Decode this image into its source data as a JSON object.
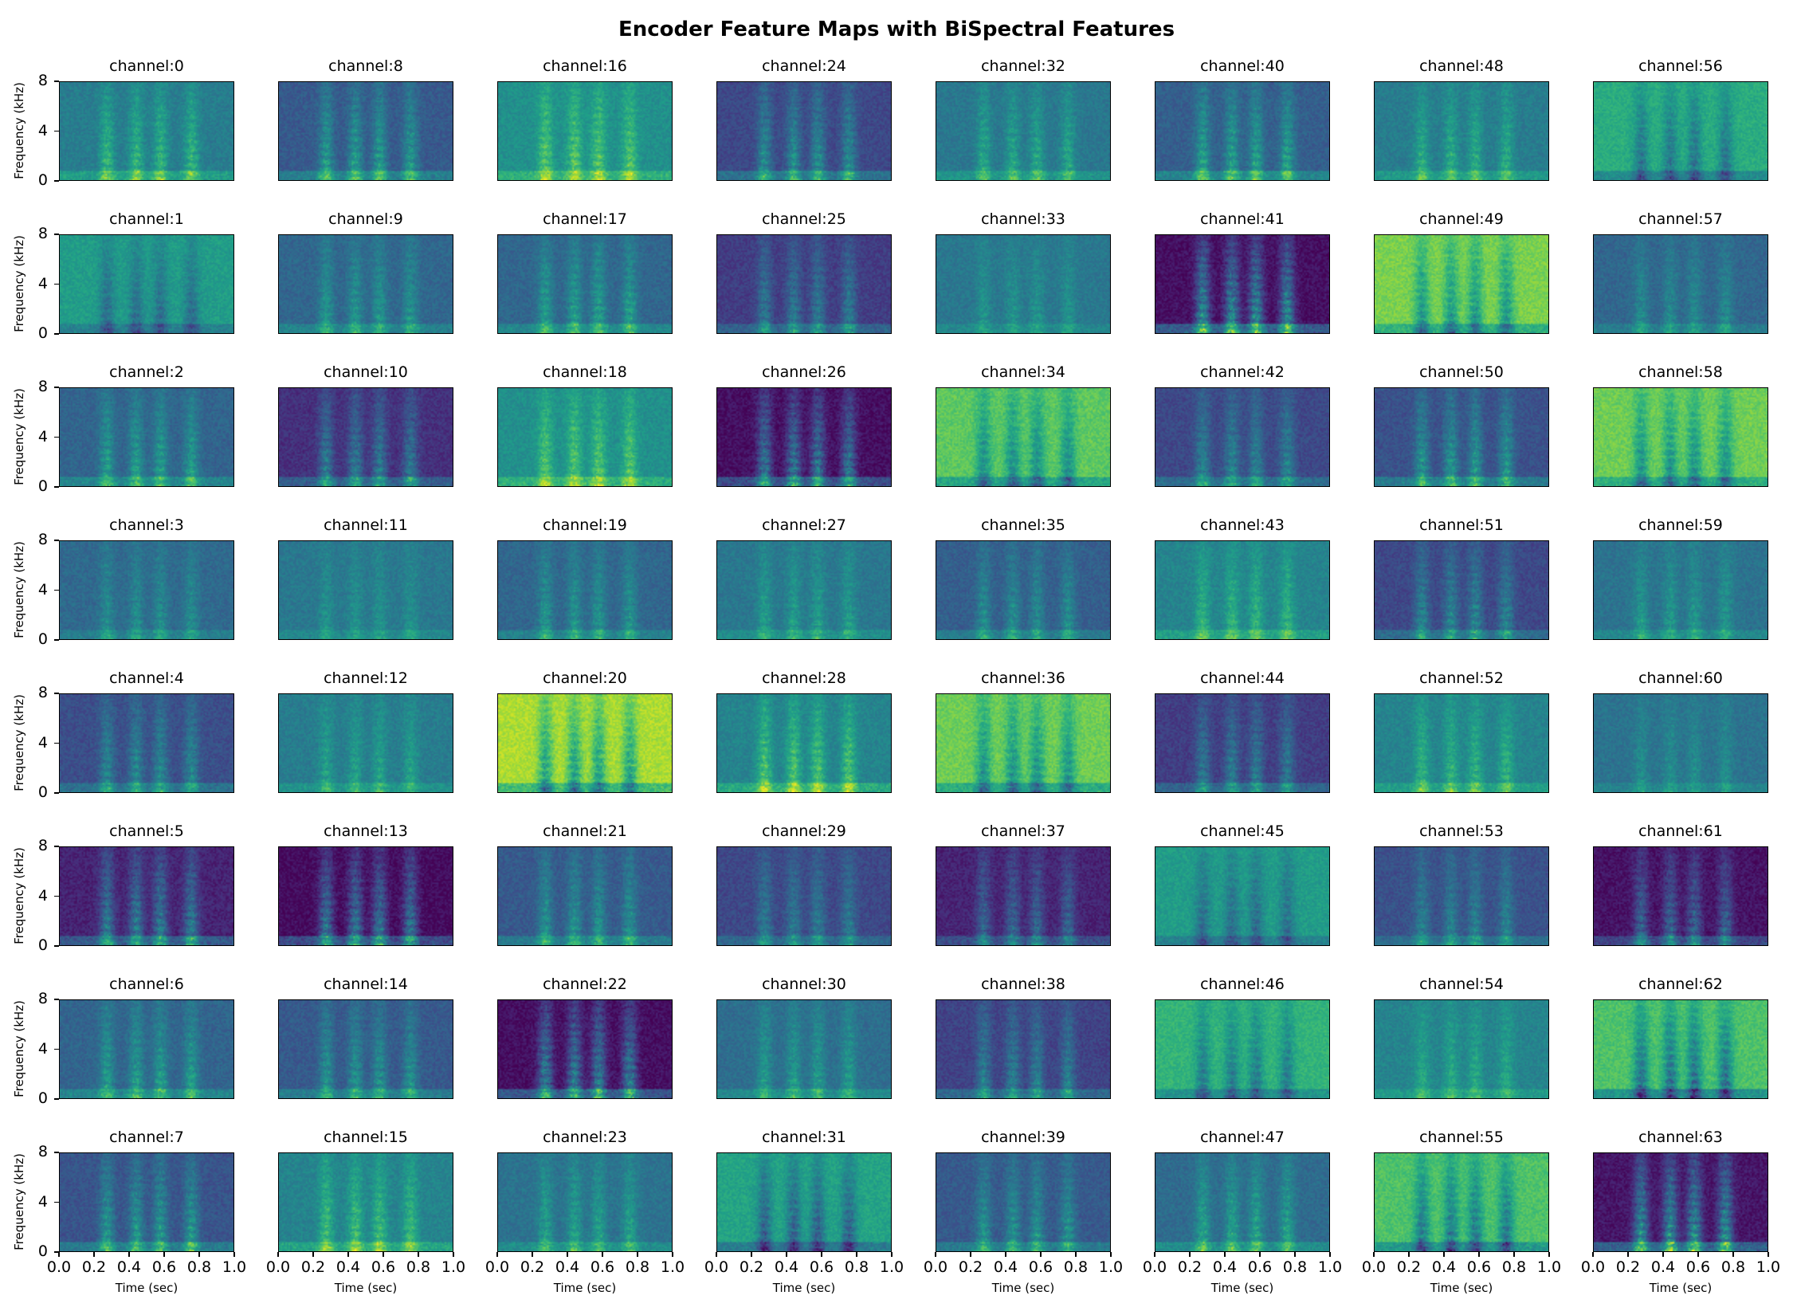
{
  "chart_data": {
    "type": "heatmap",
    "title": "Encoder Feature Maps with BiSpectral Features",
    "xlabel": "Time (sec)",
    "ylabel": "Frequency (kHz)",
    "xlim": [
      0.0,
      1.0
    ],
    "ylim": [
      0,
      8
    ],
    "xticks": [
      "0.0",
      "0.2",
      "0.4",
      "0.6",
      "0.8",
      "1.0"
    ],
    "yticks": [
      "0",
      "4",
      "8"
    ],
    "colormap": "viridis",
    "grid": false,
    "rows": 8,
    "cols": 8,
    "panels": [
      {
        "title": "channel:0",
        "bg": 0.42,
        "contrast": 0.3
      },
      {
        "title": "channel:8",
        "bg": 0.28,
        "contrast": 0.35
      },
      {
        "title": "channel:16",
        "bg": 0.5,
        "contrast": 0.3
      },
      {
        "title": "channel:24",
        "bg": 0.22,
        "contrast": 0.35
      },
      {
        "title": "channel:32",
        "bg": 0.4,
        "contrast": 0.25
      },
      {
        "title": "channel:40",
        "bg": 0.3,
        "contrast": 0.35
      },
      {
        "title": "channel:48",
        "bg": 0.42,
        "contrast": 0.25
      },
      {
        "title": "channel:56",
        "bg": 0.62,
        "contrast": 0.3
      },
      {
        "title": "channel:1",
        "bg": 0.55,
        "contrast": 0.25
      },
      {
        "title": "channel:9",
        "bg": 0.33,
        "contrast": 0.25
      },
      {
        "title": "channel:17",
        "bg": 0.33,
        "contrast": 0.3
      },
      {
        "title": "channel:25",
        "bg": 0.18,
        "contrast": 0.3
      },
      {
        "title": "channel:33",
        "bg": 0.4,
        "contrast": 0.15
      },
      {
        "title": "channel:41",
        "bg": 0.04,
        "contrast": 0.55
      },
      {
        "title": "channel:49",
        "bg": 0.8,
        "contrast": 0.35
      },
      {
        "title": "channel:57",
        "bg": 0.33,
        "contrast": 0.2
      },
      {
        "title": "channel:2",
        "bg": 0.32,
        "contrast": 0.3
      },
      {
        "title": "channel:10",
        "bg": 0.14,
        "contrast": 0.35
      },
      {
        "title": "channel:18",
        "bg": 0.5,
        "contrast": 0.3
      },
      {
        "title": "channel:26",
        "bg": 0.04,
        "contrast": 0.45
      },
      {
        "title": "channel:34",
        "bg": 0.75,
        "contrast": 0.35
      },
      {
        "title": "channel:42",
        "bg": 0.22,
        "contrast": 0.3
      },
      {
        "title": "channel:50",
        "bg": 0.25,
        "contrast": 0.35
      },
      {
        "title": "channel:58",
        "bg": 0.78,
        "contrast": 0.35
      },
      {
        "title": "channel:3",
        "bg": 0.34,
        "contrast": 0.2
      },
      {
        "title": "channel:11",
        "bg": 0.4,
        "contrast": 0.15
      },
      {
        "title": "channel:19",
        "bg": 0.33,
        "contrast": 0.25
      },
      {
        "title": "channel:27",
        "bg": 0.4,
        "contrast": 0.2
      },
      {
        "title": "channel:35",
        "bg": 0.3,
        "contrast": 0.25
      },
      {
        "title": "channel:43",
        "bg": 0.45,
        "contrast": 0.25
      },
      {
        "title": "channel:51",
        "bg": 0.22,
        "contrast": 0.3
      },
      {
        "title": "channel:59",
        "bg": 0.38,
        "contrast": 0.2
      },
      {
        "title": "channel:4",
        "bg": 0.24,
        "contrast": 0.3
      },
      {
        "title": "channel:12",
        "bg": 0.42,
        "contrast": 0.2
      },
      {
        "title": "channel:20",
        "bg": 0.88,
        "contrast": 0.4
      },
      {
        "title": "channel:28",
        "bg": 0.45,
        "contrast": 0.35
      },
      {
        "title": "channel:36",
        "bg": 0.78,
        "contrast": 0.35
      },
      {
        "title": "channel:44",
        "bg": 0.18,
        "contrast": 0.3
      },
      {
        "title": "channel:52",
        "bg": 0.45,
        "contrast": 0.25
      },
      {
        "title": "channel:60",
        "bg": 0.38,
        "contrast": 0.15
      },
      {
        "title": "channel:5",
        "bg": 0.1,
        "contrast": 0.4
      },
      {
        "title": "channel:13",
        "bg": 0.03,
        "contrast": 0.45
      },
      {
        "title": "channel:21",
        "bg": 0.28,
        "contrast": 0.3
      },
      {
        "title": "channel:29",
        "bg": 0.22,
        "contrast": 0.25
      },
      {
        "title": "channel:37",
        "bg": 0.1,
        "contrast": 0.3
      },
      {
        "title": "channel:45",
        "bg": 0.55,
        "contrast": 0.25
      },
      {
        "title": "channel:53",
        "bg": 0.25,
        "contrast": 0.25
      },
      {
        "title": "channel:61",
        "bg": 0.05,
        "contrast": 0.35
      },
      {
        "title": "channel:6",
        "bg": 0.32,
        "contrast": 0.3
      },
      {
        "title": "channel:14",
        "bg": 0.28,
        "contrast": 0.3
      },
      {
        "title": "channel:22",
        "bg": 0.04,
        "contrast": 0.5
      },
      {
        "title": "channel:30",
        "bg": 0.36,
        "contrast": 0.25
      },
      {
        "title": "channel:38",
        "bg": 0.2,
        "contrast": 0.3
      },
      {
        "title": "channel:46",
        "bg": 0.65,
        "contrast": 0.3
      },
      {
        "title": "channel:54",
        "bg": 0.45,
        "contrast": 0.2
      },
      {
        "title": "channel:62",
        "bg": 0.72,
        "contrast": 0.45
      },
      {
        "title": "channel:7",
        "bg": 0.26,
        "contrast": 0.35
      },
      {
        "title": "channel:15",
        "bg": 0.45,
        "contrast": 0.3
      },
      {
        "title": "channel:23",
        "bg": 0.38,
        "contrast": 0.25
      },
      {
        "title": "channel:31",
        "bg": 0.58,
        "contrast": 0.35
      },
      {
        "title": "channel:39",
        "bg": 0.28,
        "contrast": 0.3
      },
      {
        "title": "channel:47",
        "bg": 0.35,
        "contrast": 0.3
      },
      {
        "title": "channel:55",
        "bg": 0.72,
        "contrast": 0.4
      },
      {
        "title": "channel:63",
        "bg": 0.06,
        "contrast": 0.55
      }
    ]
  }
}
